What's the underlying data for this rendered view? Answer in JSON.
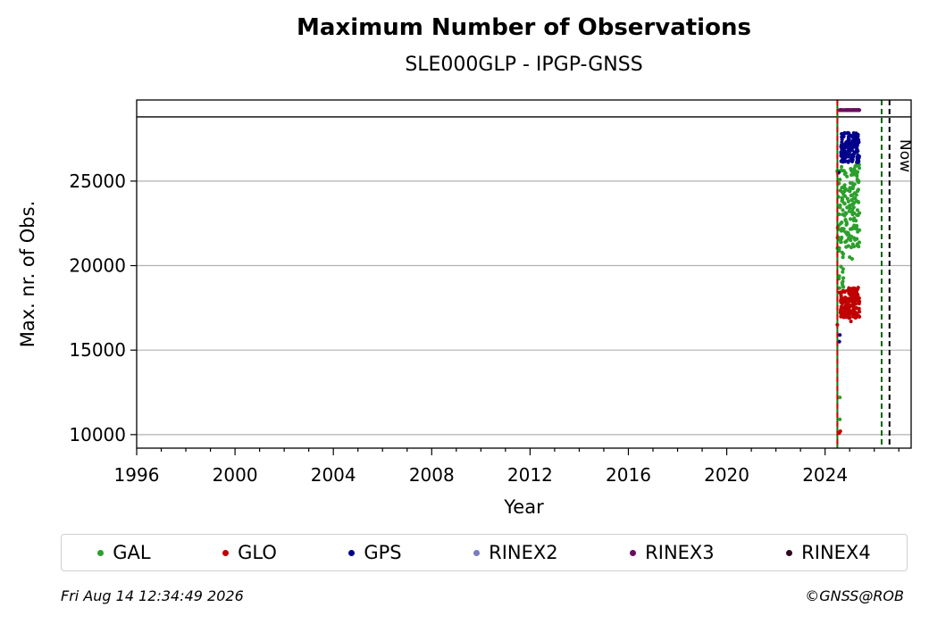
{
  "chart_data": {
    "type": "scatter",
    "title": "Maximum Number of Observations",
    "subtitle": "SLE000GLP - IPGP-GNSS",
    "xlabel": "Year",
    "ylabel": "Max. nr. of Obs.",
    "xlim": [
      1996,
      2027.5
    ],
    "ylim": [
      9200,
      29800
    ],
    "xticks": [
      "1996",
      "2000",
      "2004",
      "2008",
      "2012",
      "2016",
      "2020",
      "2024"
    ],
    "yticks": [
      "10000",
      "15000",
      "20000",
      "25000"
    ],
    "grid": "horizontal",
    "legend_placement": "bottom",
    "annotations": {
      "now_label": "Now"
    },
    "vlines": [
      {
        "x": 2024.5,
        "color": "#008000",
        "style": "solid"
      },
      {
        "x": 2024.5,
        "color": "#cc0000",
        "style": "dashed"
      },
      {
        "x": 2026.3,
        "color": "#006400",
        "style": "dashed"
      },
      {
        "x": 2026.62,
        "color": "#000000",
        "style": "dashed"
      }
    ],
    "hline": {
      "y": 28800,
      "color": "#000000"
    },
    "series": [
      {
        "name": "GAL",
        "color": "#2ca02c",
        "clusters": [
          {
            "x": [
              2024.5,
              2025.4
            ],
            "y": [
              21000,
              26000
            ],
            "n": 180
          },
          {
            "x": [
              2024.55,
              2024.75
            ],
            "y": [
              18600,
              21000
            ],
            "n": 15
          }
        ],
        "points": [
          [
            2024.6,
            12200
          ],
          [
            2024.6,
            10900
          ],
          [
            2025.0,
            20500
          ],
          [
            2025.1,
            20400
          ]
        ]
      },
      {
        "name": "GLO",
        "color": "#c00000",
        "clusters": [
          {
            "x": [
              2024.6,
              2025.4
            ],
            "y": [
              16900,
              18700
            ],
            "n": 160
          }
        ],
        "points": [
          [
            2024.62,
            10200
          ],
          [
            2024.58,
            10100
          ],
          [
            2024.5,
            16500
          ],
          [
            2025.05,
            16700
          ]
        ]
      },
      {
        "name": "GPS",
        "color": "#00008b",
        "clusters": [
          {
            "x": [
              2024.65,
              2025.4
            ],
            "y": [
              26100,
              27900
            ],
            "n": 150
          }
        ],
        "points": [
          [
            2024.55,
            25500
          ],
          [
            2024.6,
            15900
          ],
          [
            2024.58,
            15500
          ]
        ]
      },
      {
        "name": "RINEX2",
        "color": "#7b7bbf",
        "clusters": [],
        "points": []
      },
      {
        "name": "RINEX3",
        "color": "#6a0d5e",
        "clusters": [
          {
            "x": [
              2024.6,
              2025.4
            ],
            "y": [
              29200,
              29200
            ],
            "n": 60
          }
        ],
        "points": []
      },
      {
        "name": "RINEX4",
        "color": "#2b0a1f",
        "clusters": [],
        "points": []
      }
    ]
  },
  "footer": {
    "timestamp": "Fri Aug 14 12:34:49 2026",
    "credit": "©GNSS@ROB"
  }
}
